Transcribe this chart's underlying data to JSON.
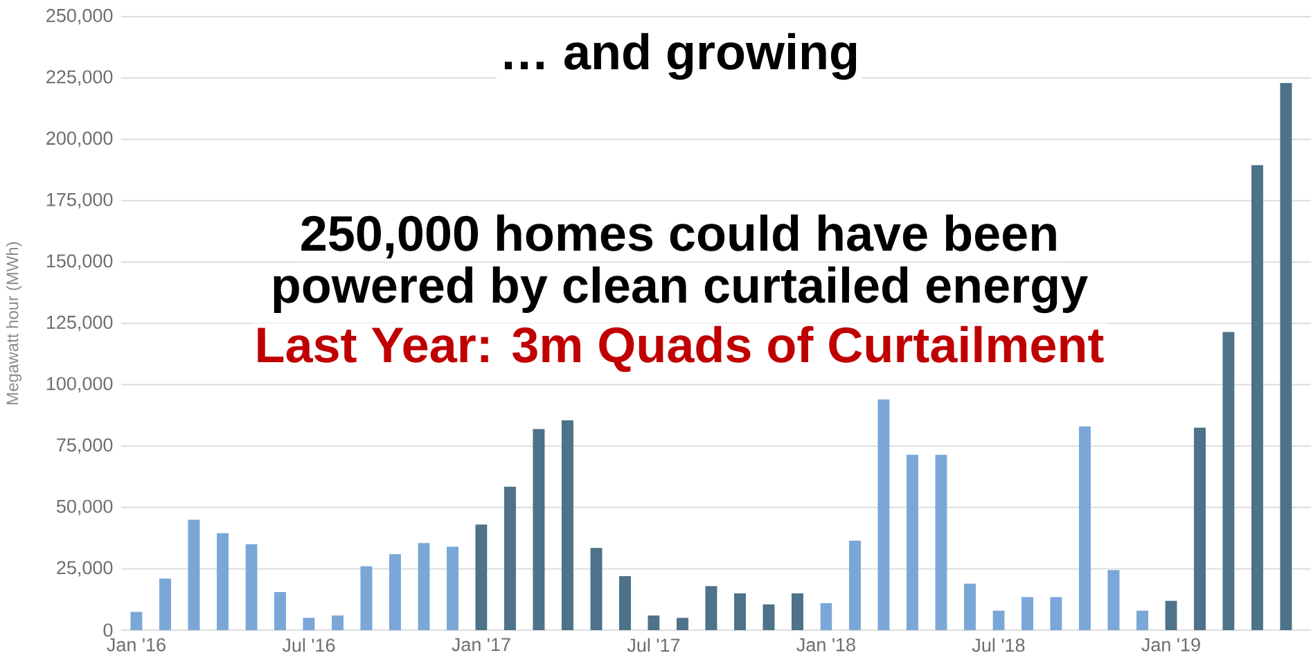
{
  "chart_data": {
    "type": "bar",
    "title": "… and growing",
    "ylabel": "Megawatt hour (MWh)",
    "annotations": [
      "250,000 homes could have been",
      "powered by clean curtailed energy",
      "Last Year: 3m Quads of Curtailment"
    ],
    "categories": [
      "Jan '16",
      null,
      null,
      null,
      null,
      null,
      "Jul '16",
      null,
      null,
      null,
      null,
      null,
      "Jan '17",
      null,
      null,
      null,
      null,
      null,
      "Jul '17",
      null,
      null,
      null,
      null,
      null,
      "Jan '18",
      null,
      null,
      null,
      null,
      null,
      "Jul '18",
      null,
      null,
      null,
      null,
      null,
      "Jan '19",
      null,
      null,
      null,
      null
    ],
    "values": [
      7500,
      21000,
      45000,
      39500,
      35000,
      15500,
      5000,
      6000,
      26000,
      31000,
      35500,
      34000,
      43000,
      58500,
      82000,
      85500,
      33500,
      22000,
      6000,
      5000,
      18000,
      15000,
      10500,
      15000,
      11000,
      36500,
      94000,
      71500,
      71500,
      19000,
      8000,
      13500,
      13500,
      83000,
      24500,
      8000,
      12000,
      82500,
      121500,
      189500,
      223000
    ],
    "colors": [
      "#7aa7d8",
      "#7aa7d8",
      "#7aa7d8",
      "#7aa7d8",
      "#7aa7d8",
      "#7aa7d8",
      "#7aa7d8",
      "#7aa7d8",
      "#7aa7d8",
      "#7aa7d8",
      "#7aa7d8",
      "#7aa7d8",
      "#4d7289",
      "#4d7289",
      "#4d7289",
      "#4d7289",
      "#4d7289",
      "#4d7289",
      "#4d7289",
      "#4d7289",
      "#4d7289",
      "#4d7289",
      "#4d7289",
      "#4d7289",
      "#7aa7d8",
      "#7aa7d8",
      "#7aa7d8",
      "#7aa7d8",
      "#7aa7d8",
      "#7aa7d8",
      "#7aa7d8",
      "#7aa7d8",
      "#7aa7d8",
      "#7aa7d8",
      "#7aa7d8",
      "#7aa7d8",
      "#4d7289",
      "#4d7289",
      "#4d7289",
      "#4d7289",
      "#4d7289"
    ],
    "ylim": [
      0,
      250000
    ],
    "yticks": [
      0,
      {
        "value": 25000,
        "label": "25,000"
      },
      {
        "value": 50000,
        "label": "50,000"
      },
      {
        "value": 75000,
        "label": "75,000"
      },
      {
        "value": 100000,
        "label": "100,000"
      },
      {
        "value": 125000,
        "label": "125,000"
      },
      {
        "value": 150000,
        "label": "150,000"
      },
      {
        "value": 175000,
        "label": "175,000"
      },
      {
        "value": 200000,
        "label": "200,000"
      },
      {
        "value": 225000,
        "label": "225,000"
      },
      {
        "value": 250000,
        "label": "250,000"
      }
    ],
    "grid": "y"
  }
}
